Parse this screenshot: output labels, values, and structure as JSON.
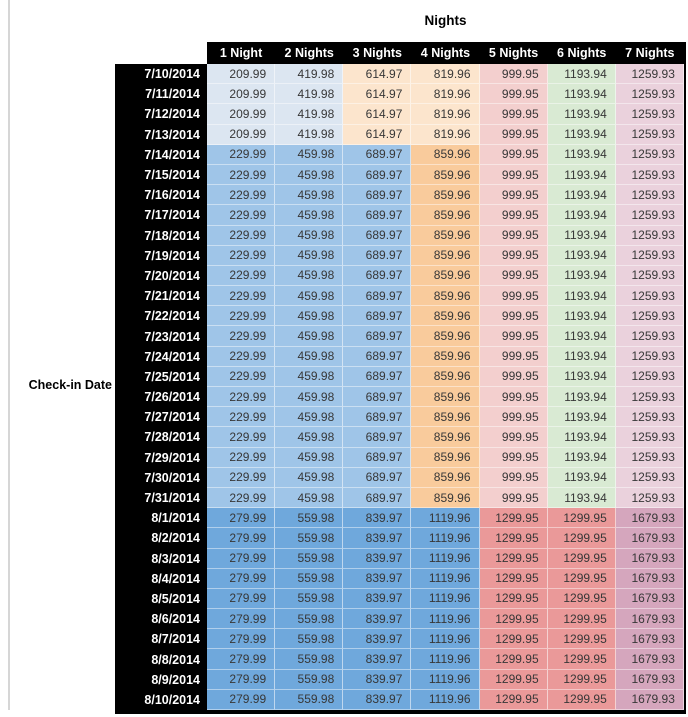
{
  "title": "Nights",
  "axis_label": "Check-in Date",
  "columns": [
    "1 Night",
    "2 Nights",
    "3 Nights",
    "4 Nights",
    "5 Nights",
    "6 Nights",
    "7 Nights"
  ],
  "colors": {
    "header_bg": "#000000",
    "header_text": "#FFFFFF",
    "date_text": "#FFFFFF",
    "value_text": "#373737",
    "table_border": "#000000",
    "side_rule": "#D6D6D6",
    "bands": {
      "band_a": [
        "#DCE6F1",
        "#DCE6F1",
        "#FCE5CD",
        "#FCE5CD",
        "#F3CFCE",
        "#D9EAD3",
        "#EAD1DC"
      ],
      "band_b": [
        "#9FC5E8",
        "#9FC5E8",
        "#9FC5E8",
        "#F9CB9C",
        "#F3CFCE",
        "#D9EAD3",
        "#EAD1DC"
      ],
      "band_c": [
        "#6FA8DC",
        "#6FA8DC",
        "#6FA8DC",
        "#6FA8DC",
        "#EA9999",
        "#EA9999",
        "#D5A6BD"
      ]
    }
  },
  "chart_data": {
    "type": "table",
    "title": "Nights",
    "xlabel": "Nights",
    "ylabel": "Check-in Date",
    "columns": [
      "1 Night",
      "2 Nights",
      "3 Nights",
      "4 Nights",
      "5 Nights",
      "6 Nights",
      "7 Nights"
    ],
    "rows": [
      {
        "date": "7/10/2014",
        "band": "band_a",
        "values": [
          209.99,
          419.98,
          614.97,
          819.96,
          999.95,
          1193.94,
          1259.93
        ]
      },
      {
        "date": "7/11/2014",
        "band": "band_a",
        "values": [
          209.99,
          419.98,
          614.97,
          819.96,
          999.95,
          1193.94,
          1259.93
        ]
      },
      {
        "date": "7/12/2014",
        "band": "band_a",
        "values": [
          209.99,
          419.98,
          614.97,
          819.96,
          999.95,
          1193.94,
          1259.93
        ]
      },
      {
        "date": "7/13/2014",
        "band": "band_a",
        "values": [
          209.99,
          419.98,
          614.97,
          819.96,
          999.95,
          1193.94,
          1259.93
        ]
      },
      {
        "date": "7/14/2014",
        "band": "band_b",
        "values": [
          229.99,
          459.98,
          689.97,
          859.96,
          999.95,
          1193.94,
          1259.93
        ]
      },
      {
        "date": "7/15/2014",
        "band": "band_b",
        "values": [
          229.99,
          459.98,
          689.97,
          859.96,
          999.95,
          1193.94,
          1259.93
        ]
      },
      {
        "date": "7/16/2014",
        "band": "band_b",
        "values": [
          229.99,
          459.98,
          689.97,
          859.96,
          999.95,
          1193.94,
          1259.93
        ]
      },
      {
        "date": "7/17/2014",
        "band": "band_b",
        "values": [
          229.99,
          459.98,
          689.97,
          859.96,
          999.95,
          1193.94,
          1259.93
        ]
      },
      {
        "date": "7/18/2014",
        "band": "band_b",
        "values": [
          229.99,
          459.98,
          689.97,
          859.96,
          999.95,
          1193.94,
          1259.93
        ]
      },
      {
        "date": "7/19/2014",
        "band": "band_b",
        "values": [
          229.99,
          459.98,
          689.97,
          859.96,
          999.95,
          1193.94,
          1259.93
        ]
      },
      {
        "date": "7/20/2014",
        "band": "band_b",
        "values": [
          229.99,
          459.98,
          689.97,
          859.96,
          999.95,
          1193.94,
          1259.93
        ]
      },
      {
        "date": "7/21/2014",
        "band": "band_b",
        "values": [
          229.99,
          459.98,
          689.97,
          859.96,
          999.95,
          1193.94,
          1259.93
        ]
      },
      {
        "date": "7/22/2014",
        "band": "band_b",
        "values": [
          229.99,
          459.98,
          689.97,
          859.96,
          999.95,
          1193.94,
          1259.93
        ]
      },
      {
        "date": "7/23/2014",
        "band": "band_b",
        "values": [
          229.99,
          459.98,
          689.97,
          859.96,
          999.95,
          1193.94,
          1259.93
        ]
      },
      {
        "date": "7/24/2014",
        "band": "band_b",
        "values": [
          229.99,
          459.98,
          689.97,
          859.96,
          999.95,
          1193.94,
          1259.93
        ]
      },
      {
        "date": "7/25/2014",
        "band": "band_b",
        "values": [
          229.99,
          459.98,
          689.97,
          859.96,
          999.95,
          1193.94,
          1259.93
        ]
      },
      {
        "date": "7/26/2014",
        "band": "band_b",
        "values": [
          229.99,
          459.98,
          689.97,
          859.96,
          999.95,
          1193.94,
          1259.93
        ]
      },
      {
        "date": "7/27/2014",
        "band": "band_b",
        "values": [
          229.99,
          459.98,
          689.97,
          859.96,
          999.95,
          1193.94,
          1259.93
        ]
      },
      {
        "date": "7/28/2014",
        "band": "band_b",
        "values": [
          229.99,
          459.98,
          689.97,
          859.96,
          999.95,
          1193.94,
          1259.93
        ]
      },
      {
        "date": "7/29/2014",
        "band": "band_b",
        "values": [
          229.99,
          459.98,
          689.97,
          859.96,
          999.95,
          1193.94,
          1259.93
        ]
      },
      {
        "date": "7/30/2014",
        "band": "band_b",
        "values": [
          229.99,
          459.98,
          689.97,
          859.96,
          999.95,
          1193.94,
          1259.93
        ]
      },
      {
        "date": "7/31/2014",
        "band": "band_b",
        "values": [
          229.99,
          459.98,
          689.97,
          859.96,
          999.95,
          1193.94,
          1259.93
        ]
      },
      {
        "date": "8/1/2014",
        "band": "band_c",
        "values": [
          279.99,
          559.98,
          839.97,
          1119.96,
          1299.95,
          1299.95,
          1679.93
        ]
      },
      {
        "date": "8/2/2014",
        "band": "band_c",
        "values": [
          279.99,
          559.98,
          839.97,
          1119.96,
          1299.95,
          1299.95,
          1679.93
        ]
      },
      {
        "date": "8/3/2014",
        "band": "band_c",
        "values": [
          279.99,
          559.98,
          839.97,
          1119.96,
          1299.95,
          1299.95,
          1679.93
        ]
      },
      {
        "date": "8/4/2014",
        "band": "band_c",
        "values": [
          279.99,
          559.98,
          839.97,
          1119.96,
          1299.95,
          1299.95,
          1679.93
        ]
      },
      {
        "date": "8/5/2014",
        "band": "band_c",
        "values": [
          279.99,
          559.98,
          839.97,
          1119.96,
          1299.95,
          1299.95,
          1679.93
        ]
      },
      {
        "date": "8/6/2014",
        "band": "band_c",
        "values": [
          279.99,
          559.98,
          839.97,
          1119.96,
          1299.95,
          1299.95,
          1679.93
        ]
      },
      {
        "date": "8/7/2014",
        "band": "band_c",
        "values": [
          279.99,
          559.98,
          839.97,
          1119.96,
          1299.95,
          1299.95,
          1679.93
        ]
      },
      {
        "date": "8/8/2014",
        "band": "band_c",
        "values": [
          279.99,
          559.98,
          839.97,
          1119.96,
          1299.95,
          1299.95,
          1679.93
        ]
      },
      {
        "date": "8/9/2014",
        "band": "band_c",
        "values": [
          279.99,
          559.98,
          839.97,
          1119.96,
          1299.95,
          1299.95,
          1679.93
        ]
      },
      {
        "date": "8/10/2014",
        "band": "band_c",
        "values": [
          279.99,
          559.98,
          839.97,
          1119.96,
          1299.95,
          1299.95,
          1679.93
        ]
      }
    ]
  }
}
